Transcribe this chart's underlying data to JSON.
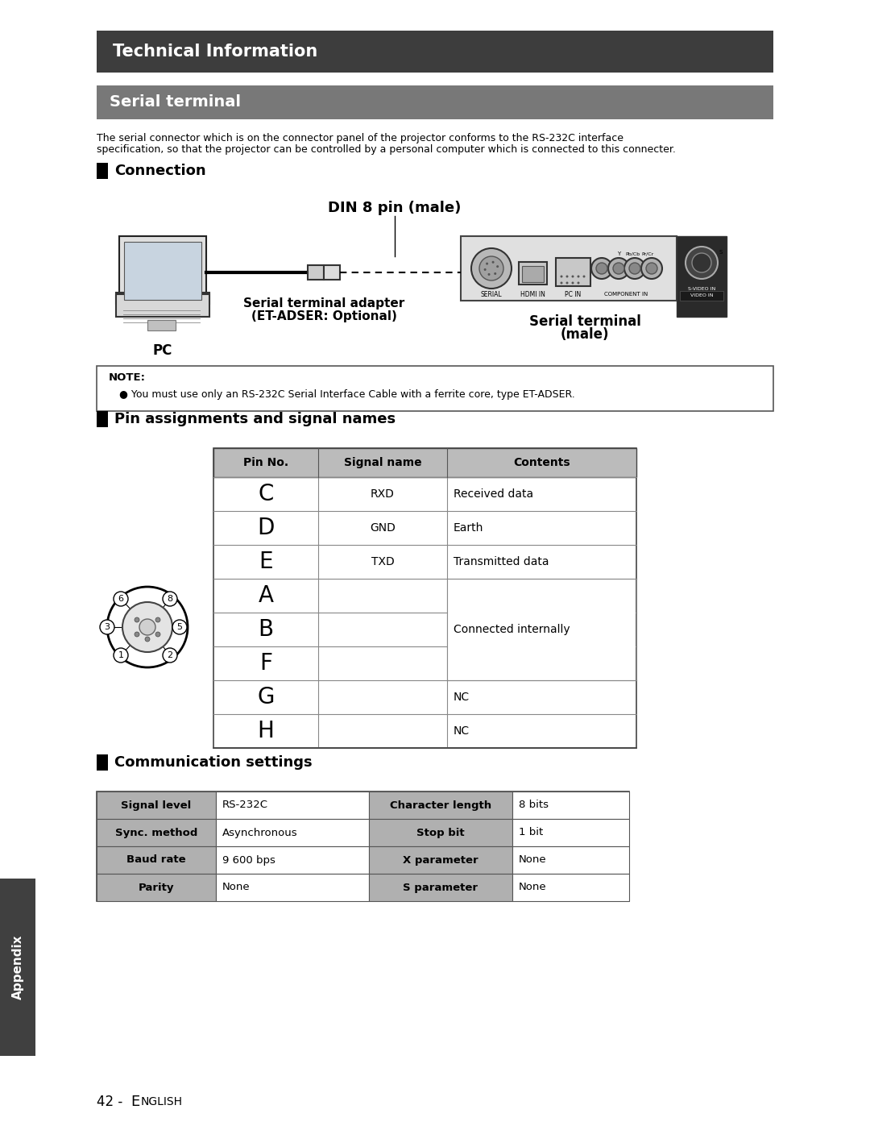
{
  "title_tech": "Technical Information",
  "title_serial": "Serial terminal",
  "desc_line1": "The serial connector which is on the connector panel of the projector conforms to the RS-232C interface",
  "desc_line2": "specification, so that the projector can be controlled by a personal computer which is connected to this connecter.",
  "connection_title": "Connection",
  "din_label": "DIN 8 pin (male)",
  "pc_label": "PC",
  "adapter_label1": "Serial terminal adapter",
  "adapter_label2": "(ET-ADSER: Optional)",
  "serial_term_label1": "Serial terminal",
  "serial_term_label2": "(male)",
  "note_title": "NOTE:",
  "note_text": "You must use only an RS-232C Serial Interface Cable with a ferrite core, type ET-ADSER.",
  "pin_title": "Pin assignments and signal names",
  "pin_header": [
    "Pin No.",
    "Signal name",
    "Contents"
  ],
  "pin_rows": [
    [
      "C",
      "RXD",
      "Received data"
    ],
    [
      "D",
      "GND",
      "Earth"
    ],
    [
      "E",
      "TXD",
      "Transmitted data"
    ],
    [
      "A",
      "",
      ""
    ],
    [
      "B",
      "",
      "Connected internally"
    ],
    [
      "F",
      "",
      ""
    ],
    [
      "G",
      "",
      "NC"
    ],
    [
      "H",
      "",
      "NC"
    ]
  ],
  "comm_title": "Communication settings",
  "comm_rows": [
    [
      "Signal level",
      "RS-232C",
      "Character length",
      "8 bits"
    ],
    [
      "Sync. method",
      "Asynchronous",
      "Stop bit",
      "1 bit"
    ],
    [
      "Baud rate",
      "9 600 bps",
      "X parameter",
      "None"
    ],
    [
      "Parity",
      "None",
      "S parameter",
      "None"
    ]
  ],
  "appendix_label": "Appendix",
  "footer_num": "42 - ",
  "footer_E": "E",
  "footer_nglish": "NGLISH",
  "bg_color": "#ffffff",
  "header_dark_bg": "#3d3d3d",
  "header_mid_bg": "#787878",
  "table_header_bg": "#bbbbbb",
  "comm_header_bg": "#b0b0b0",
  "sidebar_bg": "#404040"
}
